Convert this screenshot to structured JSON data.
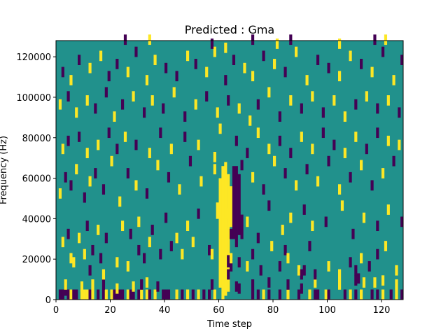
{
  "chart_data": {
    "type": "heatmap",
    "title": "Predicted : Gma",
    "xlabel": "Time step",
    "ylabel": "Frequency (Hz)",
    "xlim": [
      0,
      128
    ],
    "ylim": [
      0,
      128000
    ],
    "xticks": [
      0,
      20,
      40,
      60,
      80,
      100,
      120
    ],
    "yticks": [
      0,
      20000,
      40000,
      60000,
      80000,
      100000,
      120000
    ],
    "grid": false,
    "legend": "none",
    "levels": [
      -1,
      0,
      1
    ],
    "colors": {
      "low": "#440154",
      "mid": "#21918c",
      "high": "#fde725"
    },
    "background_value": 0,
    "cell_size": {
      "time_steps": 1,
      "hz": 2000
    },
    "cells": [
      [
        1,
        0,
        -1
      ],
      [
        2,
        0,
        -1
      ],
      [
        3,
        2,
        -1
      ],
      [
        4,
        0,
        -1
      ],
      [
        5,
        0,
        1
      ],
      [
        6,
        0,
        -1
      ],
      [
        7,
        0,
        -1
      ],
      [
        9,
        0,
        1
      ],
      [
        10,
        0,
        1
      ],
      [
        11,
        0,
        1
      ],
      [
        12,
        0,
        -1
      ],
      [
        13,
        0,
        1
      ],
      [
        15,
        0,
        -1
      ],
      [
        17,
        0,
        -1
      ],
      [
        18,
        0,
        1
      ],
      [
        20,
        0,
        1
      ],
      [
        21,
        0,
        -1
      ],
      [
        22,
        0,
        -1
      ],
      [
        23,
        0,
        -1
      ],
      [
        24,
        0,
        -1
      ],
      [
        26,
        0,
        1
      ],
      [
        27,
        0,
        -1
      ],
      [
        28,
        0,
        -1
      ],
      [
        30,
        0,
        -1
      ],
      [
        31,
        0,
        1
      ],
      [
        33,
        0,
        1
      ],
      [
        34,
        0,
        -1
      ],
      [
        36,
        0,
        1
      ],
      [
        39,
        0,
        -1
      ],
      [
        40,
        0,
        -1
      ],
      [
        41,
        0,
        -1
      ],
      [
        44,
        0,
        1
      ],
      [
        46,
        0,
        -1
      ],
      [
        48,
        0,
        1
      ],
      [
        50,
        0,
        -1
      ],
      [
        52,
        0,
        1
      ],
      [
        54,
        0,
        -1
      ],
      [
        56,
        0,
        -1
      ],
      [
        58,
        0,
        1
      ],
      [
        72,
        0,
        -1
      ],
      [
        74,
        0,
        -1
      ],
      [
        76,
        0,
        1
      ],
      [
        78,
        0,
        -1
      ],
      [
        82,
        0,
        -1
      ],
      [
        85,
        0,
        1
      ],
      [
        89,
        0,
        -1
      ],
      [
        93,
        0,
        1
      ],
      [
        95,
        0,
        -1
      ],
      [
        96,
        0,
        -1
      ],
      [
        99,
        0,
        1
      ],
      [
        100,
        0,
        -1
      ],
      [
        106,
        0,
        -1
      ],
      [
        108,
        0,
        1
      ],
      [
        110,
        0,
        -1
      ],
      [
        112,
        0,
        1
      ],
      [
        116,
        0,
        -1
      ],
      [
        118,
        0,
        -1
      ],
      [
        120,
        0,
        1
      ],
      [
        123,
        0,
        -1
      ],
      [
        125,
        0,
        1
      ],
      [
        127,
        0,
        -1
      ],
      [
        3,
        5,
        1
      ],
      [
        9,
        4,
        1
      ],
      [
        13,
        5,
        1
      ],
      [
        17,
        5,
        -1
      ],
      [
        22,
        3,
        1
      ],
      [
        28,
        4,
        1
      ],
      [
        31,
        5,
        -1
      ],
      [
        33,
        6,
        1
      ],
      [
        37,
        4,
        -1
      ],
      [
        57,
        5,
        -1
      ],
      [
        66,
        4,
        -1
      ],
      [
        67,
        3,
        -1
      ],
      [
        72,
        5,
        -1
      ],
      [
        78,
        6,
        -1
      ],
      [
        85,
        5,
        -1
      ],
      [
        90,
        3,
        -1
      ],
      [
        95,
        6,
        1
      ],
      [
        104,
        5,
        1
      ],
      [
        110,
        7,
        -1
      ],
      [
        111,
        8,
        -1
      ],
      [
        113,
        6,
        1
      ],
      [
        117,
        6,
        1
      ],
      [
        120,
        7,
        1
      ],
      [
        125,
        5,
        1
      ],
      [
        5,
        18,
        1
      ],
      [
        6,
        16,
        1
      ],
      [
        10,
        20,
        1
      ],
      [
        13,
        22,
        -1
      ],
      [
        12,
        12,
        -1
      ],
      [
        16,
        18,
        -1
      ],
      [
        17,
        10,
        1
      ],
      [
        22,
        16,
        1
      ],
      [
        26,
        14,
        1
      ],
      [
        30,
        22,
        -1
      ],
      [
        32,
        18,
        -1
      ],
      [
        34,
        26,
        1
      ],
      [
        38,
        20,
        -1
      ],
      [
        42,
        24,
        -1
      ],
      [
        46,
        20,
        1
      ],
      [
        50,
        26,
        1
      ],
      [
        56,
        22,
        -1
      ],
      [
        57,
        20,
        1
      ],
      [
        63,
        10,
        -1
      ],
      [
        64,
        18,
        1
      ],
      [
        67,
        16,
        -1
      ],
      [
        70,
        14,
        1
      ],
      [
        72,
        20,
        -1
      ],
      [
        75,
        12,
        -1
      ],
      [
        79,
        24,
        1
      ],
      [
        82,
        14,
        -1
      ],
      [
        84,
        22,
        -1
      ],
      [
        85,
        18,
        1
      ],
      [
        89,
        12,
        1
      ],
      [
        90,
        10,
        -1
      ],
      [
        91,
        12,
        -1
      ],
      [
        93,
        24,
        -1
      ],
      [
        95,
        10,
        -1
      ],
      [
        100,
        14,
        1
      ],
      [
        104,
        10,
        1
      ],
      [
        108,
        16,
        -1
      ],
      [
        110,
        12,
        -1
      ],
      [
        112,
        18,
        1
      ],
      [
        115,
        14,
        -1
      ],
      [
        118,
        20,
        -1
      ],
      [
        121,
        24,
        1
      ],
      [
        125,
        12,
        1
      ],
      [
        2,
        26,
        1
      ],
      [
        4,
        30,
        -1
      ],
      [
        8,
        28,
        1
      ],
      [
        11,
        34,
        -1
      ],
      [
        15,
        32,
        1
      ],
      [
        18,
        28,
        -1
      ],
      [
        24,
        34,
        1
      ],
      [
        27,
        30,
        -1
      ],
      [
        30,
        36,
        1
      ],
      [
        35,
        32,
        -1
      ],
      [
        40,
        38,
        -1
      ],
      [
        44,
        28,
        1
      ],
      [
        48,
        34,
        1
      ],
      [
        52,
        40,
        -1
      ],
      [
        60,
        40,
        1
      ],
      [
        61,
        40,
        1
      ],
      [
        62,
        40,
        1
      ],
      [
        64,
        30,
        -1
      ],
      [
        70,
        36,
        1
      ],
      [
        74,
        28,
        -1
      ],
      [
        78,
        44,
        -1
      ],
      [
        83,
        32,
        1
      ],
      [
        86,
        38,
        1
      ],
      [
        91,
        42,
        -1
      ],
      [
        94,
        34,
        1
      ],
      [
        99,
        36,
        -1
      ],
      [
        105,
        44,
        1
      ],
      [
        109,
        30,
        -1
      ],
      [
        113,
        38,
        1
      ],
      [
        118,
        34,
        -1
      ],
      [
        122,
        42,
        1
      ],
      [
        127,
        36,
        -1
      ],
      [
        1,
        50,
        1
      ],
      [
        3,
        58,
        -1
      ],
      [
        5,
        54,
        -1
      ],
      [
        7,
        62,
        1
      ],
      [
        10,
        48,
        -1
      ],
      [
        12,
        56,
        1
      ],
      [
        14,
        60,
        -1
      ],
      [
        17,
        52,
        -1
      ],
      [
        20,
        66,
        1
      ],
      [
        23,
        46,
        1
      ],
      [
        26,
        60,
        -1
      ],
      [
        29,
        54,
        1
      ],
      [
        33,
        50,
        -1
      ],
      [
        37,
        64,
        1
      ],
      [
        41,
        58,
        -1
      ],
      [
        45,
        52,
        1
      ],
      [
        49,
        66,
        -1
      ],
      [
        53,
        56,
        1
      ],
      [
        58,
        62,
        1
      ],
      [
        68,
        64,
        -1
      ],
      [
        72,
        58,
        1
      ],
      [
        76,
        52,
        -1
      ],
      [
        80,
        66,
        1
      ],
      [
        84,
        60,
        -1
      ],
      [
        88,
        54,
        1
      ],
      [
        92,
        62,
        -1
      ],
      [
        96,
        56,
        1
      ],
      [
        100,
        66,
        -1
      ],
      [
        104,
        52,
        1
      ],
      [
        108,
        58,
        -1
      ],
      [
        112,
        64,
        1
      ],
      [
        116,
        54,
        -1
      ],
      [
        120,
        60,
        1
      ],
      [
        124,
        66,
        -1
      ],
      [
        2,
        72,
        1
      ],
      [
        4,
        76,
        -1
      ],
      [
        8,
        78,
        -1
      ],
      [
        11,
        70,
        1
      ],
      [
        15,
        74,
        1
      ],
      [
        19,
        80,
        -1
      ],
      [
        22,
        72,
        -1
      ],
      [
        25,
        78,
        1
      ],
      [
        29,
        74,
        -1
      ],
      [
        34,
        70,
        1
      ],
      [
        38,
        80,
        -1
      ],
      [
        42,
        72,
        1
      ],
      [
        47,
        78,
        -1
      ],
      [
        52,
        74,
        1
      ],
      [
        58,
        68,
        1
      ],
      [
        60,
        82,
        1
      ],
      [
        66,
        76,
        -1
      ],
      [
        70,
        70,
        -1
      ],
      [
        74,
        80,
        1
      ],
      [
        78,
        72,
        1
      ],
      [
        82,
        76,
        -1
      ],
      [
        86,
        70,
        -1
      ],
      [
        90,
        78,
        1
      ],
      [
        94,
        72,
        1
      ],
      [
        98,
        80,
        -1
      ],
      [
        102,
        74,
        -1
      ],
      [
        106,
        70,
        1
      ],
      [
        110,
        78,
        1
      ],
      [
        114,
        72,
        -1
      ],
      [
        118,
        80,
        -1
      ],
      [
        122,
        76,
        1
      ],
      [
        126,
        74,
        1
      ],
      [
        1,
        94,
        1
      ],
      [
        4,
        98,
        -1
      ],
      [
        7,
        90,
        1
      ],
      [
        11,
        96,
        1
      ],
      [
        14,
        92,
        -1
      ],
      [
        18,
        100,
        -1
      ],
      [
        21,
        88,
        1
      ],
      [
        24,
        94,
        -1
      ],
      [
        28,
        98,
        1
      ],
      [
        32,
        90,
        -1
      ],
      [
        35,
        96,
        1
      ],
      [
        39,
        92,
        -1
      ],
      [
        43,
        100,
        1
      ],
      [
        47,
        88,
        -1
      ],
      [
        51,
        94,
        1
      ],
      [
        55,
        98,
        -1
      ],
      [
        59,
        90,
        1
      ],
      [
        63,
        96,
        -1
      ],
      [
        67,
        92,
        1
      ],
      [
        71,
        86,
        1
      ],
      [
        74,
        94,
        -1
      ],
      [
        78,
        100,
        1
      ],
      [
        82,
        88,
        -1
      ],
      [
        86,
        96,
        1
      ],
      [
        90,
        92,
        -1
      ],
      [
        94,
        98,
        1
      ],
      [
        98,
        90,
        -1
      ],
      [
        102,
        96,
        1
      ],
      [
        106,
        88,
        1
      ],
      [
        110,
        94,
        -1
      ],
      [
        114,
        98,
        1
      ],
      [
        118,
        92,
        -1
      ],
      [
        122,
        96,
        1
      ],
      [
        126,
        90,
        -1
      ],
      [
        2,
        110,
        -1
      ],
      [
        5,
        106,
        1
      ],
      [
        8,
        116,
        -1
      ],
      [
        12,
        112,
        1
      ],
      [
        16,
        118,
        1
      ],
      [
        19,
        108,
        -1
      ],
      [
        22,
        114,
        -1
      ],
      [
        26,
        110,
        1
      ],
      [
        29,
        120,
        -1
      ],
      [
        33,
        106,
        1
      ],
      [
        36,
        116,
        1
      ],
      [
        40,
        112,
        -1
      ],
      [
        44,
        108,
        -1
      ],
      [
        48,
        118,
        1
      ],
      [
        51,
        114,
        -1
      ],
      [
        55,
        110,
        1
      ],
      [
        58,
        120,
        1
      ],
      [
        62,
        106,
        -1
      ],
      [
        65,
        116,
        -1
      ],
      [
        69,
        112,
        1
      ],
      [
        72,
        108,
        1
      ],
      [
        76,
        118,
        -1
      ],
      [
        80,
        114,
        1
      ],
      [
        84,
        110,
        -1
      ],
      [
        88,
        120,
        1
      ],
      [
        92,
        106,
        1
      ],
      [
        96,
        116,
        -1
      ],
      [
        100,
        112,
        -1
      ],
      [
        104,
        108,
        1
      ],
      [
        108,
        118,
        1
      ],
      [
        112,
        114,
        -1
      ],
      [
        116,
        110,
        1
      ],
      [
        120,
        120,
        -1
      ],
      [
        124,
        106,
        1
      ],
      [
        127,
        116,
        -1
      ],
      [
        25,
        126,
        -1
      ],
      [
        34,
        126,
        1
      ],
      [
        57,
        124,
        -1
      ],
      [
        62,
        122,
        1
      ],
      [
        72,
        126,
        -1
      ],
      [
        81,
        124,
        1
      ],
      [
        86,
        126,
        -1
      ],
      [
        104,
        124,
        1
      ],
      [
        117,
        126,
        -1
      ],
      [
        121,
        126,
        1
      ]
    ],
    "bands": [
      {
        "t": 60,
        "from": 6000,
        "to": 60000,
        "value": 1
      },
      {
        "t": 61,
        "from": 0,
        "to": 66000,
        "value": 1
      },
      {
        "t": 62,
        "from": 2000,
        "to": 68000,
        "value": 1
      },
      {
        "t": 63,
        "from": 4000,
        "to": 62000,
        "value": 1
      },
      {
        "t": 64,
        "from": 36000,
        "to": 56000,
        "value": 1
      },
      {
        "t": 65,
        "from": 30000,
        "to": 66000,
        "value": -1
      },
      {
        "t": 66,
        "from": 26000,
        "to": 66000,
        "value": -1
      },
      {
        "t": 67,
        "from": 32000,
        "to": 62000,
        "value": -1
      },
      {
        "t": 68,
        "from": 30000,
        "to": 42000,
        "value": -1
      },
      {
        "t": 63,
        "from": 16000,
        "to": 22000,
        "value": -1
      },
      {
        "t": 64,
        "from": 14000,
        "to": 20000,
        "value": -1
      },
      {
        "t": 59,
        "from": 40000,
        "to": 48000,
        "value": 1
      }
    ]
  }
}
